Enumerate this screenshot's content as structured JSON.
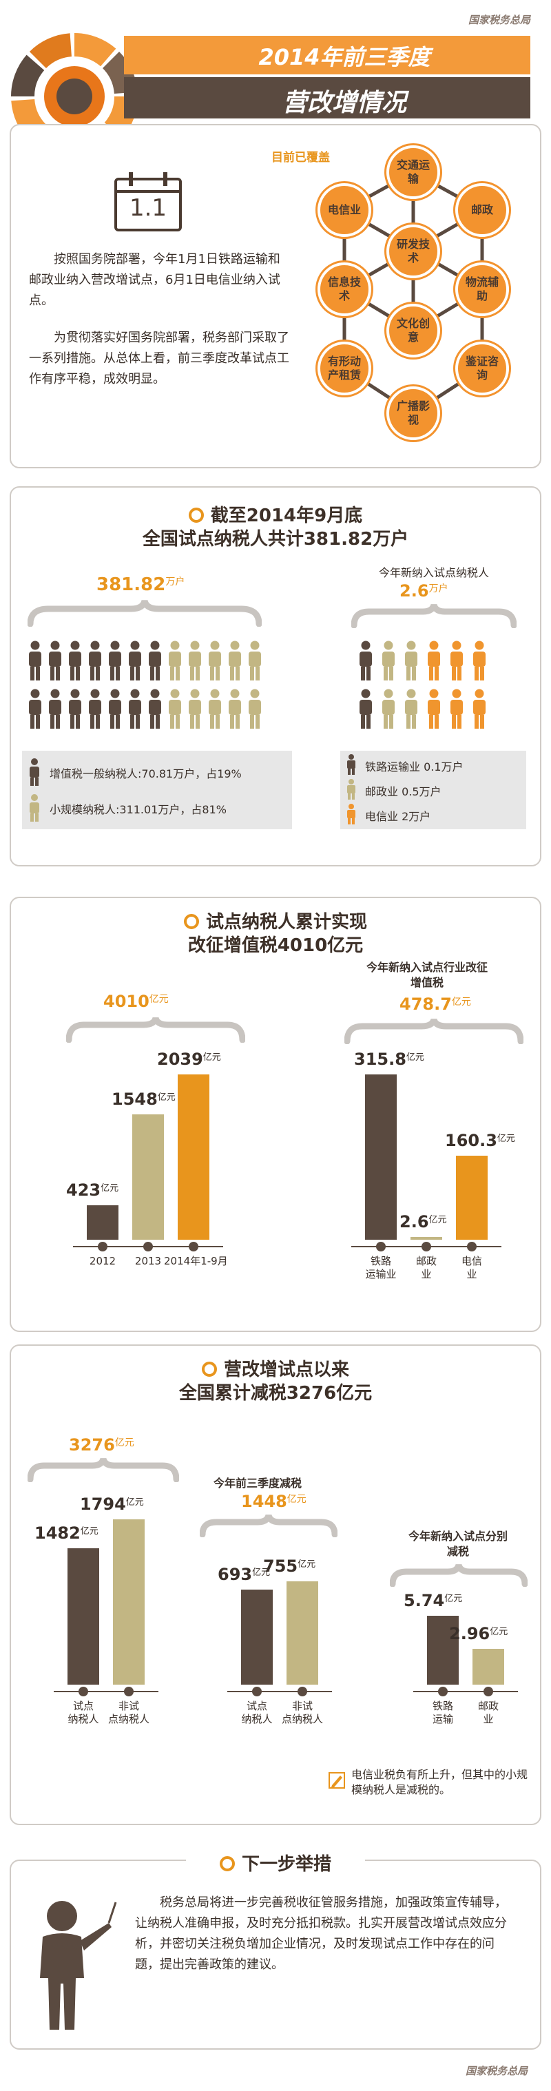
{
  "header": {
    "brand": "国家税务总局",
    "title_line1": "2014年前三季度",
    "title_line2": "营改增情况",
    "calendar": "1.1",
    "intro_p1": "按照国务院部署，今年1月1日铁路运输和邮政业纳入营改增试点，6月1日电信业纳入试点。",
    "intro_p2": "为贯彻落实好国务院部署，税务部门采取了一系列措施。从总体上看，前三季度改革试点工作有序平稳，成效明显。",
    "coverage_label": "目前已覆盖",
    "coverage_items": [
      "交通运输",
      "邮政",
      "物流辅助",
      "鉴证咨询",
      "广播影视",
      "有形动产租赁",
      "信息技术",
      "电信业",
      "研发技术",
      "文化创意"
    ]
  },
  "section1": {
    "title_line1": "截至2014年9月底",
    "title_line2": "全国试点纳税人共计381.82万户",
    "total_value": "381.82",
    "total_unit": "万户",
    "new_label": "今年新纳入试点纳税人",
    "new_value": "2.6",
    "new_unit": "万户",
    "legend_left": [
      "增值税一般纳税人:70.81万户，占19%",
      "小规模纳税人:311.01万户，占81%"
    ],
    "legend_right": [
      "铁路运输业 0.1万户",
      "邮政业 0.5万户",
      "电信业 2万户"
    ]
  },
  "section2": {
    "title_line1": "试点纳税人累计实现",
    "title_line2": "改征增值税4010亿元",
    "total_value": "4010",
    "total_unit": "亿元",
    "right_label": "今年新纳入试点行业改征增值税",
    "right_value": "478.7",
    "right_unit": "亿元"
  },
  "section3": {
    "title_line1": "营改增试点以来",
    "title_line2": "全国累计减税3276亿元",
    "total_value": "3276",
    "total_unit": "亿元",
    "mid_label": "今年前三季度减税",
    "mid_value": "1448",
    "mid_unit": "亿元",
    "right_label": "今年新纳入试点分别减税",
    "note": "电信业税负有所上升，但其中的小规模纳税人是减税的。"
  },
  "section4": {
    "title": "下一步举措",
    "body": "税务总局将进一步完善税收征管服务措施，加强政策宣传辅导，让纳税人准确申报，及时充分抵扣税款。扎实开展营改增试点效应分析，并密切关注税负增加企业情况，及时发现试点工作中存在的问题，提出完善政策的建议。"
  },
  "footer": {
    "brand": "国家税务总局"
  },
  "chart_data": [
    {
      "type": "bar",
      "title": "试点纳税人累计实现改征增值税4010亿元",
      "categories": [
        "2012",
        "2013",
        "2014年1-9月"
      ],
      "values": [
        423,
        1548,
        2039
      ],
      "unit": "亿元"
    },
    {
      "type": "bar",
      "title": "今年新纳入试点行业改征增值税",
      "categories": [
        "铁路运输业",
        "邮政业",
        "电信业"
      ],
      "values": [
        315.8,
        2.6,
        160.3
      ],
      "unit": "亿元"
    },
    {
      "type": "bar",
      "title": "营改增试点以来全国累计减税3276亿元",
      "categories": [
        "试点纳税人",
        "非试点纳税人"
      ],
      "values": [
        1482,
        1794
      ],
      "unit": "亿元"
    },
    {
      "type": "bar",
      "title": "今年前三季度减税",
      "categories": [
        "试点纳税人",
        "非试点纳税人"
      ],
      "values": [
        693,
        755
      ],
      "unit": "亿元"
    },
    {
      "type": "bar",
      "title": "今年新纳入试点分别减税",
      "categories": [
        "铁路运输",
        "邮政业"
      ],
      "values": [
        5.74,
        2.96
      ],
      "unit": "亿元"
    }
  ]
}
